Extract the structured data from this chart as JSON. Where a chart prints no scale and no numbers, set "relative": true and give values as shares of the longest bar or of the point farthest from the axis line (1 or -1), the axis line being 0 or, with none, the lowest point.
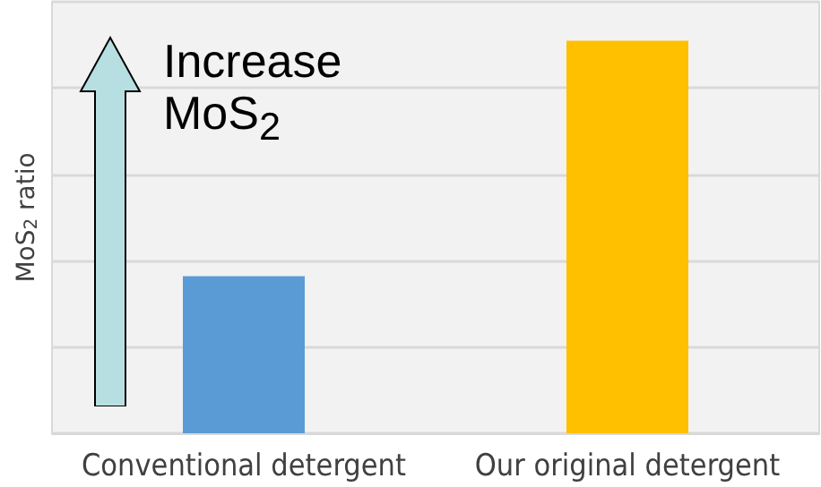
{
  "chart_data": {
    "type": "bar",
    "relative": true,
    "categories": [
      "Conventional detergent",
      "Our original detergent"
    ],
    "values": [
      0.4,
      1
    ],
    "colors": [
      "#5b9bd5",
      "#ffc000"
    ],
    "ylabel": "MoS$_{2}$ ratio",
    "annotations": [
      "Increase MoS$_{2}$"
    ],
    "grid": "y"
  }
}
